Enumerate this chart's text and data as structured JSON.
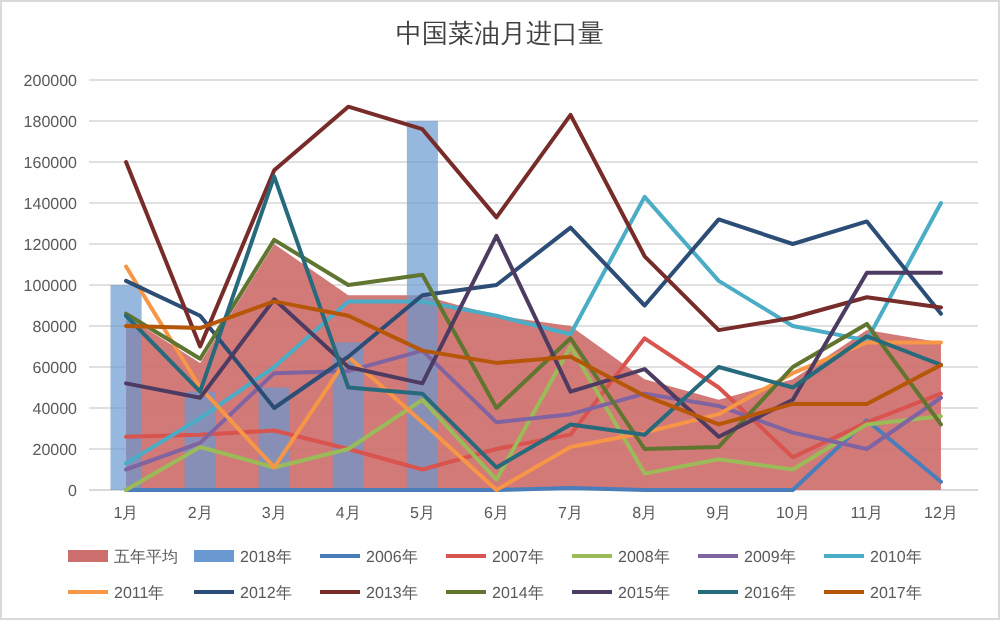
{
  "chart_data": {
    "type": "line",
    "title": "中国菜油月进口量",
    "categories": [
      "1月",
      "2月",
      "3月",
      "4月",
      "5月",
      "6月",
      "7月",
      "8月",
      "9月",
      "10月",
      "11月",
      "12月"
    ],
    "ylim": [
      0,
      200000
    ],
    "yticks": [
      0,
      20000,
      40000,
      60000,
      80000,
      100000,
      120000,
      140000,
      160000,
      180000,
      200000
    ],
    "grid": "y",
    "legend": "bottom",
    "series": [
      {
        "name": "五年平均",
        "type": "area",
        "color": "#cd6f6c",
        "values": [
          85000,
          62000,
          120000,
          95000,
          95000,
          85000,
          80000,
          54000,
          44000,
          54000,
          78000,
          72000
        ]
      },
      {
        "name": "2018年",
        "type": "bar",
        "color": "#6a98d0",
        "values": [
          100000,
          48000,
          50000,
          72000,
          180000,
          null,
          null,
          null,
          null,
          null,
          null,
          null
        ]
      },
      {
        "name": "2006年",
        "color": "#4a7ebb",
        "values": [
          0,
          0,
          0,
          0,
          0,
          0,
          1000,
          0,
          0,
          0,
          34000,
          4000
        ]
      },
      {
        "name": "2007年",
        "color": "#d9534f",
        "values": [
          26000,
          27000,
          29000,
          20000,
          10000,
          20000,
          27000,
          74000,
          50000,
          16000,
          33000,
          47000
        ]
      },
      {
        "name": "2008年",
        "color": "#9bbb59",
        "values": [
          0,
          21000,
          11000,
          20000,
          44000,
          5000,
          70000,
          8000,
          15000,
          10000,
          32000,
          36000
        ]
      },
      {
        "name": "2009年",
        "color": "#8064a2",
        "values": [
          10000,
          23000,
          57000,
          58000,
          68000,
          33000,
          37000,
          47000,
          41000,
          28000,
          20000,
          45000
        ]
      },
      {
        "name": "2010年",
        "color": "#4bacc6",
        "values": [
          13000,
          35000,
          60000,
          92000,
          92000,
          85000,
          76000,
          143000,
          102000,
          80000,
          73000,
          140000
        ]
      },
      {
        "name": "2011年",
        "color": "#f79646",
        "values": [
          109000,
          50000,
          11000,
          65000,
          33000,
          0,
          21000,
          28000,
          37000,
          57000,
          72000,
          72000
        ]
      },
      {
        "name": "2012年",
        "color": "#2c4d75",
        "values": [
          102000,
          85000,
          40000,
          65000,
          95000,
          100000,
          128000,
          90000,
          132000,
          120000,
          131000,
          86000
        ]
      },
      {
        "name": "2013年",
        "color": "#772c2a",
        "values": [
          160000,
          70000,
          156000,
          187000,
          176000,
          133000,
          183000,
          114000,
          78000,
          84000,
          94000,
          89000
        ]
      },
      {
        "name": "2014年",
        "color": "#5f7530",
        "values": [
          86000,
          64000,
          122000,
          100000,
          105000,
          40000,
          74000,
          20000,
          21000,
          60000,
          81000,
          32000
        ]
      },
      {
        "name": "2015年",
        "color": "#4d3b62",
        "values": [
          52000,
          45000,
          93000,
          60000,
          52000,
          124000,
          48000,
          59000,
          26000,
          44000,
          106000,
          106000
        ]
      },
      {
        "name": "2016年",
        "color": "#276a7c",
        "values": [
          85000,
          48000,
          153000,
          50000,
          47000,
          11000,
          32000,
          27000,
          60000,
          50000,
          75000,
          61000
        ]
      },
      {
        "name": "2017年",
        "color": "#b65708",
        "values": [
          80000,
          79000,
          92000,
          85000,
          68000,
          62000,
          65000,
          46000,
          32000,
          42000,
          42000,
          61000
        ]
      }
    ]
  }
}
